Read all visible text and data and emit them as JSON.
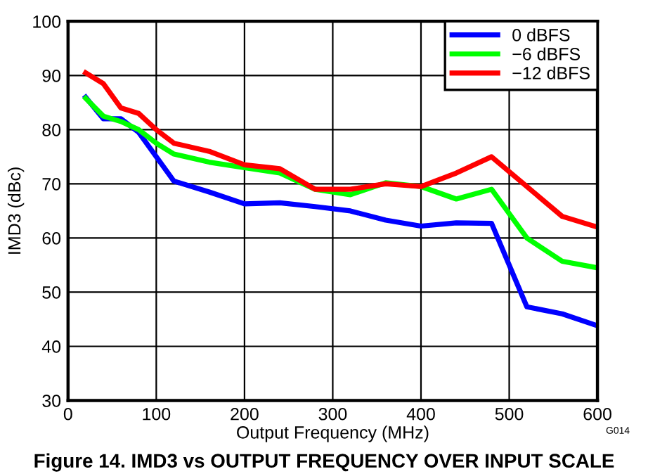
{
  "chart_data": {
    "type": "line",
    "title": "Figure 14. IMD3 vs OUTPUT FREQUENCY OVER INPUT SCALE",
    "xlabel": "Output Frequency (MHz)",
    "ylabel": "IMD3 (dBc)",
    "x": [
      20,
      40,
      60,
      80,
      100,
      120,
      160,
      200,
      240,
      280,
      320,
      360,
      400,
      440,
      480,
      520,
      560,
      600
    ],
    "series": [
      {
        "name": "0 dBFS",
        "color": "#0000ff",
        "values": [
          86,
          82,
          82,
          79.5,
          75,
          70.5,
          68.5,
          66.3,
          66.5,
          65.8,
          65,
          63.3,
          62.2,
          62.8,
          62.7,
          47.3,
          46,
          43.8
        ]
      },
      {
        "name": "−6 dBFS",
        "color": "#00ff00",
        "values": [
          85.8,
          82.5,
          81.5,
          80,
          77.5,
          75.5,
          74,
          73,
          72,
          69,
          68,
          70.2,
          69.5,
          67.2,
          69,
          60,
          55.7,
          54.5
        ]
      },
      {
        "name": "−12 dBFS",
        "color": "#ff0000",
        "values": [
          90.5,
          88.5,
          84,
          83,
          80,
          77.5,
          76,
          73.5,
          72.8,
          69,
          69,
          70,
          69.5,
          72,
          75,
          69.5,
          64,
          62
        ]
      }
    ],
    "xlim": [
      0,
      600
    ],
    "xticks": [
      0,
      100,
      200,
      300,
      400,
      500,
      600
    ],
    "ylim": [
      30,
      100
    ],
    "yticks": [
      30,
      40,
      50,
      60,
      70,
      80,
      90,
      100
    ],
    "grid": true,
    "legend": "top right",
    "marker": "none",
    "line_style": "solid",
    "annotations": [
      "G014"
    ]
  }
}
